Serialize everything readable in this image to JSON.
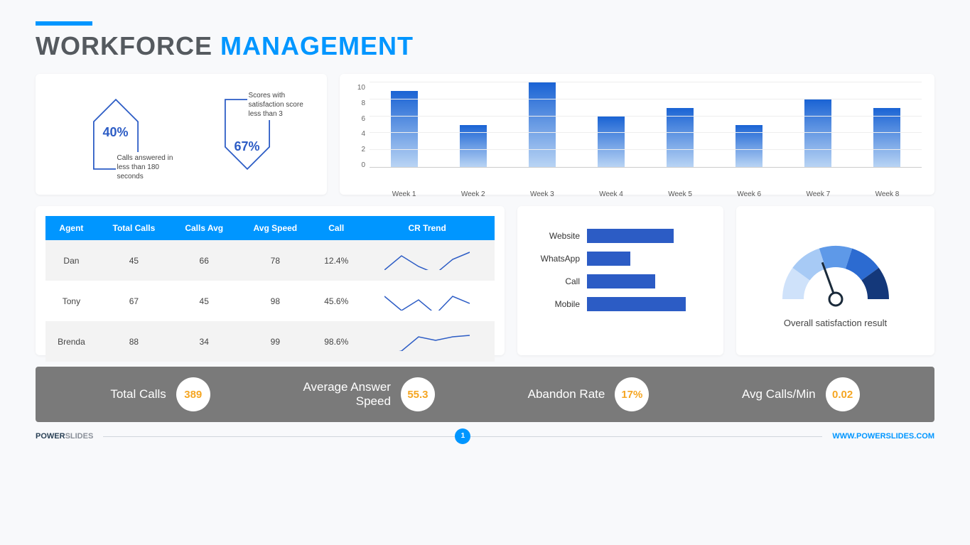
{
  "title": {
    "word1": "WORKFORCE",
    "word2": "MANAGEMENT"
  },
  "accent_color": "#0096ff",
  "kpi": {
    "item1": {
      "pct": "40%",
      "label": "Calls answered in less than 180 seconds",
      "direction": "up",
      "stroke": "#2c5cc5"
    },
    "item2": {
      "pct": "67%",
      "label": "Scores with satisfaction score less than 3",
      "direction": "down",
      "stroke": "#2c5cc5"
    }
  },
  "bar_chart": {
    "ymax": 10,
    "yticks": [
      10,
      8,
      6,
      4,
      2,
      0
    ],
    "categories": [
      "Week 1",
      "Week 2",
      "Week 3",
      "Week 4",
      "Week 5",
      "Week 6",
      "Week 7",
      "Week 8"
    ],
    "values": [
      9,
      5,
      10,
      6,
      7,
      5,
      8,
      7
    ],
    "bar_gradient_top": "#1a63d4",
    "bar_gradient_bottom": "#b9d4f4"
  },
  "table": {
    "headers": [
      "Agent",
      "Total Calls",
      "Calls Avg",
      "Avg Speed",
      "Call",
      "CR Trend"
    ],
    "rows": [
      {
        "agent": "Dan",
        "total": "45",
        "avg": "66",
        "speed": "78",
        "call": "12.4%",
        "trend": [
          30,
          10,
          25,
          35,
          15,
          5
        ]
      },
      {
        "agent": "Tony",
        "total": "67",
        "avg": "45",
        "speed": "98",
        "call": "45.6%",
        "trend": [
          10,
          30,
          15,
          35,
          10,
          20
        ]
      },
      {
        "agent": "Brenda",
        "total": "88",
        "avg": "34",
        "speed": "99",
        "call": "98.6%",
        "trend": [
          35,
          30,
          10,
          15,
          10,
          8
        ]
      }
    ],
    "header_bg": "#0096ff",
    "spark_color": "#2c5cc5"
  },
  "hbar": {
    "items": [
      {
        "label": "Website",
        "value": 70
      },
      {
        "label": "WhatsApp",
        "value": 35
      },
      {
        "label": "Call",
        "value": 55
      },
      {
        "label": "Mobile",
        "value": 80
      }
    ],
    "max": 100,
    "fill": "#2c5cc5"
  },
  "gauge": {
    "label": "Overall satisfaction result",
    "segments": [
      "#cfe2fa",
      "#a7caf5",
      "#5e99e8",
      "#2c6bd1",
      "#14387a"
    ],
    "needle_angle_deg": 70,
    "needle_color": "#1a2a3a"
  },
  "footer": {
    "stats": [
      {
        "label": "Total Calls",
        "value": "389"
      },
      {
        "label": "Average Answer Speed",
        "value": "55.3"
      },
      {
        "label": "Abandon Rate",
        "value": "17%"
      },
      {
        "label": "Avg Calls/Min",
        "value": "0.02"
      }
    ],
    "bg": "#7a7a7a",
    "value_color": "#f5a623"
  },
  "bottom": {
    "brand1": "POWER",
    "brand2": "SLIDES",
    "page": "1",
    "url": "WWW.POWERSLIDES.COM"
  }
}
